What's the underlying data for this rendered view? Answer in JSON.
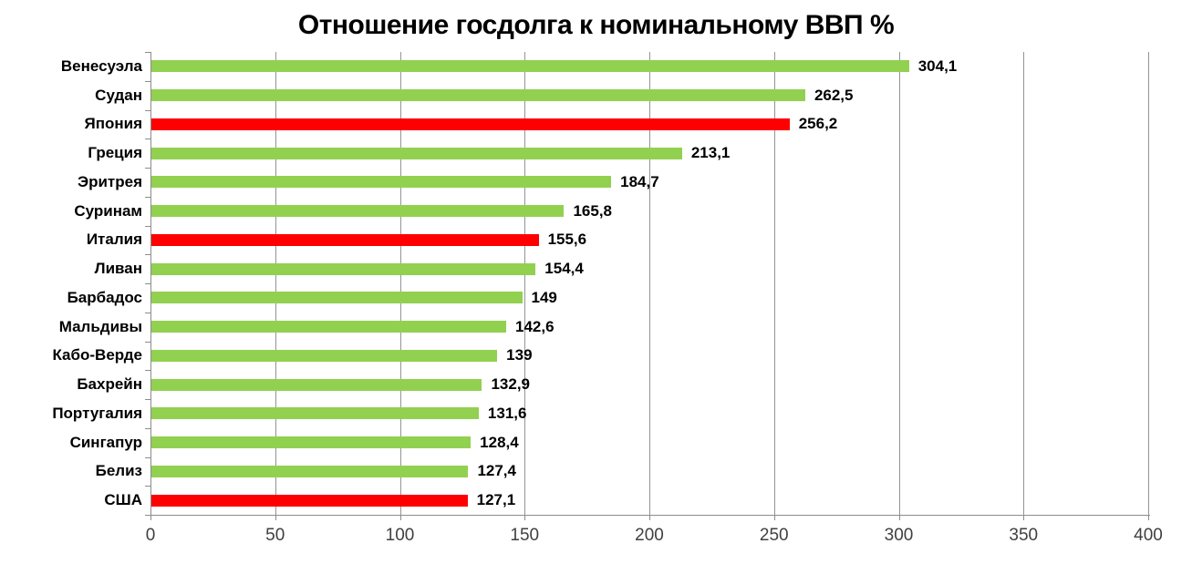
{
  "chart_data": {
    "type": "bar",
    "orientation": "horizontal",
    "title": "Отношение госдолга к номинальному ВВП %",
    "categories": [
      "Венесуэла",
      "Судан",
      "Япония",
      "Греция",
      "Эритрея",
      "Суринам",
      "Италия",
      "Ливан",
      "Барбадос",
      "Мальдивы",
      "Кабо-Верде",
      "Бахрейн",
      "Португалия",
      "Сингапур",
      "Белиз",
      "США"
    ],
    "values": [
      304.1,
      262.5,
      256.2,
      213.1,
      184.7,
      165.8,
      155.6,
      154.4,
      149,
      142.6,
      139,
      132.9,
      131.6,
      128.4,
      127.4,
      127.1
    ],
    "value_labels": [
      "304,1",
      "262,5",
      "256,2",
      "213,1",
      "184,7",
      "165,8",
      "155,6",
      "154,4",
      "149",
      "142,6",
      "139",
      "132,9",
      "131,6",
      "128,4",
      "127,4",
      "127,1"
    ],
    "highlight_indices": [
      2,
      6,
      15
    ],
    "xlim": [
      0,
      400
    ],
    "x_ticks": [
      0,
      50,
      100,
      150,
      200,
      250,
      300,
      350,
      400
    ],
    "grid": "vertical-gridlines",
    "legend": "none",
    "colors": {
      "bar_default": "#92D050",
      "bar_highlight": "#FF0000",
      "gridline": "#949494",
      "axis": "#8C8C8C",
      "tick_label": "#404040",
      "text": "#000000",
      "background": "#FFFFFF"
    }
  }
}
